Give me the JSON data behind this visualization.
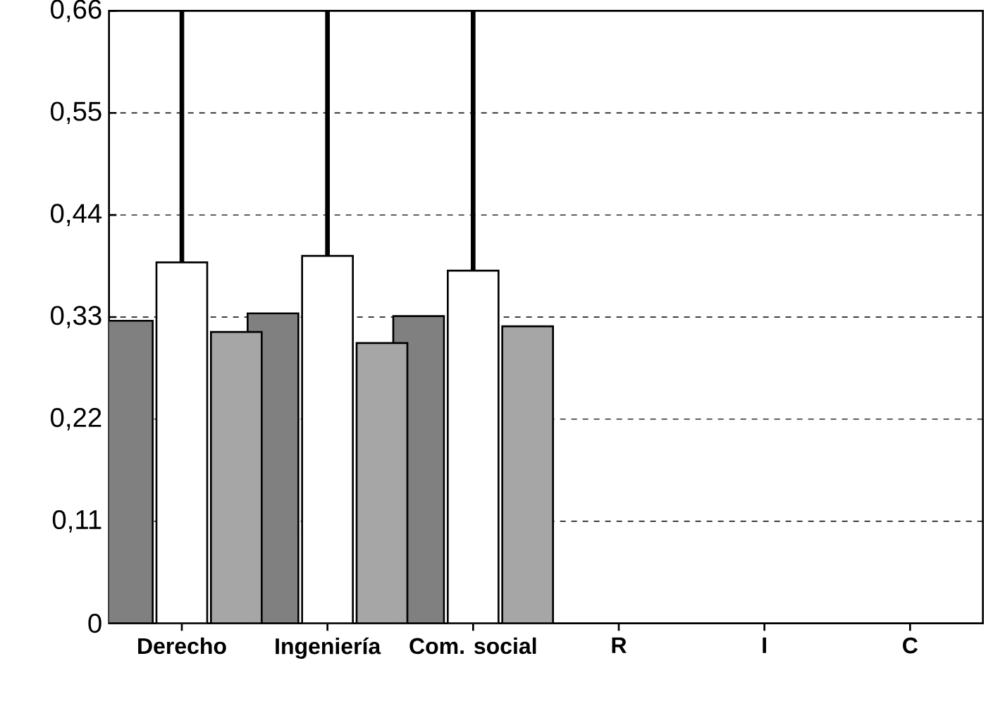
{
  "chart_data": {
    "type": "bar",
    "categories": [
      "Derecho",
      "Ingeniería",
      "Com. social",
      "R",
      "I",
      "C"
    ],
    "series": [
      {
        "color": "#808080",
        "values": [
          0.326,
          0.334,
          0.331,
          null,
          null,
          null
        ]
      },
      {
        "color": "#ffffff",
        "values": [
          0.389,
          0.396,
          0.38,
          null,
          null,
          null
        ],
        "errors": [
          [
            0.389,
            0.66
          ],
          [
            0.396,
            0.66
          ],
          [
            0.38,
            0.66
          ],
          null,
          null,
          null
        ]
      },
      {
        "color": "#a6a6a6",
        "values": [
          0.314,
          0.302,
          0.32,
          null,
          null,
          null
        ]
      }
    ],
    "ylim": [
      0,
      0.66
    ],
    "yticks": [
      {
        "value": 0,
        "label": "0"
      },
      {
        "value": 0.11,
        "label": "0,11"
      },
      {
        "value": 0.22,
        "label": "0,22"
      },
      {
        "value": 0.33,
        "label": "0,33"
      },
      {
        "value": 0.44,
        "label": "0,44"
      },
      {
        "value": 0.55,
        "label": "0,55"
      },
      {
        "value": 0.66,
        "label": "0,66"
      }
    ],
    "grid": "y"
  }
}
